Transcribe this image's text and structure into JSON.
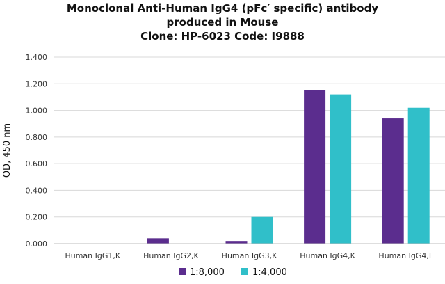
{
  "chart_data": {
    "type": "bar",
    "title_lines": [
      "Monoclonal Anti-Human IgG4 (pFc′ specific) antibody",
      "produced in Mouse",
      "Clone: HP-6023  Code: I9888"
    ],
    "xlabel": "",
    "ylabel": "OD, 450 nm",
    "ylim": [
      0,
      1.4
    ],
    "yticks": [
      "0.000",
      "0.200",
      "0.400",
      "0.600",
      "0.800",
      "1.000",
      "1.200",
      "1.400"
    ],
    "grid": true,
    "legend_position": "bottom",
    "categories": [
      "Human IgG1,K",
      "Human IgG2,K",
      "Human IgG3,K",
      "Human IgG4,K",
      "Human IgG4,L"
    ],
    "series": [
      {
        "name": "1:8,000",
        "color": "#5b2d8e",
        "values": [
          0.0,
          0.04,
          0.02,
          1.15,
          0.94
        ]
      },
      {
        "name": "1:4,000",
        "color": "#30bfc9",
        "values": [
          0.0,
          0.0,
          0.2,
          1.12,
          1.02
        ]
      }
    ]
  }
}
